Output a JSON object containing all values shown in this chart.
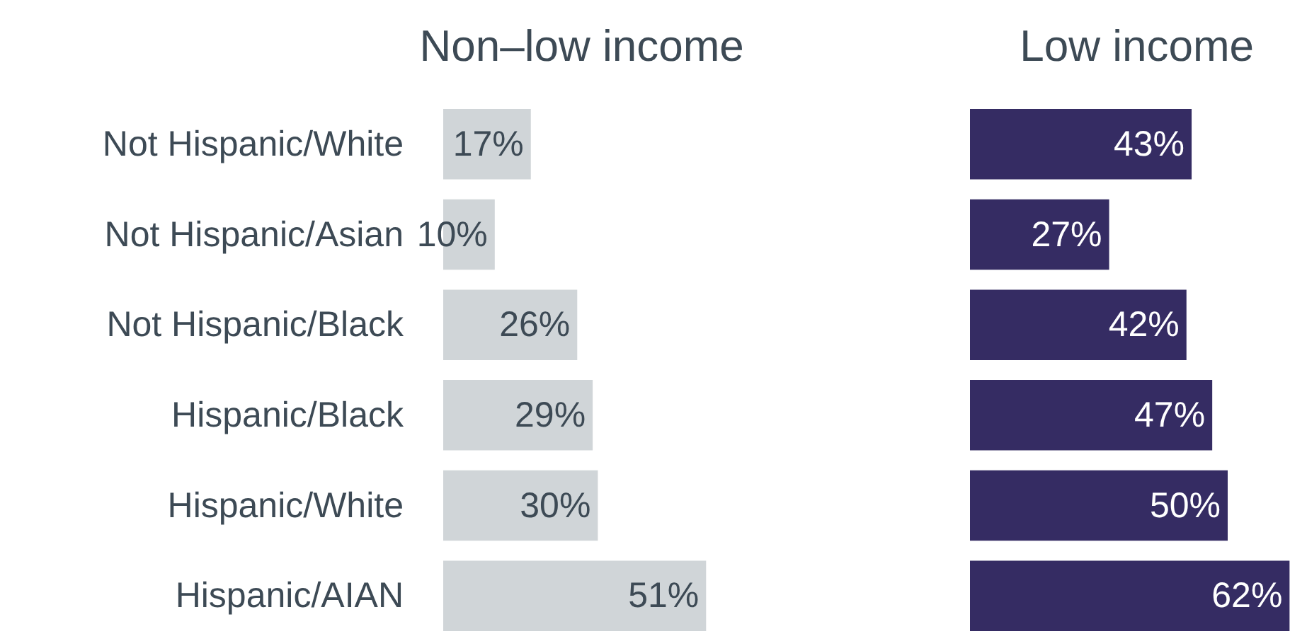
{
  "chart_data": [
    {
      "type": "bar",
      "orientation": "horizontal",
      "title": "Non–low income",
      "categories": [
        "Not Hispanic/White",
        "Not Hispanic/Asian",
        "Not Hispanic/Black",
        "Hispanic/Black",
        "Hispanic/White",
        "Hispanic/AIAN"
      ],
      "values": [
        17,
        10,
        26,
        29,
        30,
        51
      ],
      "value_labels": [
        "17%",
        "10%",
        "26%",
        "29%",
        "30%",
        "51%"
      ],
      "color": "#d0d5d8",
      "tick_labels": "y"
    },
    {
      "type": "bar",
      "orientation": "horizontal",
      "title": "Low income",
      "categories": [
        null,
        null,
        null,
        null,
        null,
        null
      ],
      "values": [
        43,
        27,
        42,
        47,
        50,
        62
      ],
      "value_labels": [
        "43%",
        "27%",
        "42%",
        "47%",
        "50%",
        "62%"
      ],
      "color": "#352c63",
      "tick_labels": false
    }
  ]
}
